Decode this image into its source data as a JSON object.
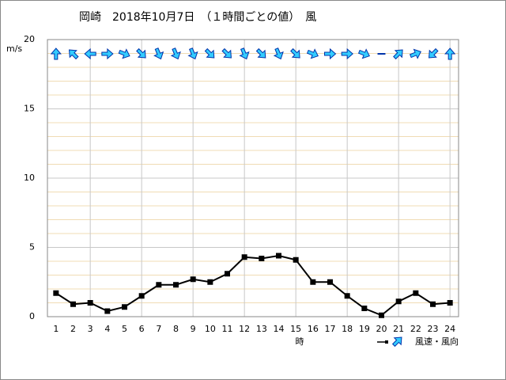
{
  "chart_data": {
    "type": "line",
    "title": "岡崎　2018年10月7日　（１時間ごとの値）　風",
    "y_label": "m/s",
    "x_label": "時",
    "legend_label": "風速・風向",
    "x": [
      1,
      2,
      3,
      4,
      5,
      6,
      7,
      8,
      9,
      10,
      11,
      12,
      13,
      14,
      15,
      16,
      17,
      18,
      19,
      20,
      21,
      22,
      23,
      24
    ],
    "xlim": [
      0.5,
      24.5
    ],
    "xticks": [
      1,
      2,
      3,
      4,
      5,
      6,
      7,
      8,
      9,
      10,
      11,
      12,
      13,
      14,
      15,
      16,
      17,
      18,
      19,
      20,
      21,
      22,
      23,
      24
    ],
    "ylim": [
      0,
      20
    ],
    "yticks": [
      0,
      5,
      10,
      15,
      20
    ],
    "x_grid_step": 3,
    "y_minor_step": 1,
    "series": [
      {
        "name": "風速",
        "color": "#000000",
        "values": [
          1.7,
          0.9,
          1.0,
          0.4,
          0.7,
          1.5,
          2.3,
          2.3,
          2.7,
          2.5,
          3.1,
          4.3,
          4.2,
          4.4,
          4.1,
          2.5,
          2.5,
          1.5,
          0.6,
          0.1,
          1.1,
          1.7,
          0.9,
          1.0
        ]
      }
    ],
    "wind_direction": {
      "name": "風向",
      "color": "#33ccff",
      "edge_color": "#0033aa",
      "angles": [
        0,
        315,
        270,
        90,
        112.5,
        135,
        157.5,
        157.5,
        157.5,
        135,
        135,
        157.5,
        135,
        157.5,
        135,
        112.5,
        90,
        90,
        112.5,
        null,
        45,
        67.5,
        225,
        0
      ]
    }
  }
}
